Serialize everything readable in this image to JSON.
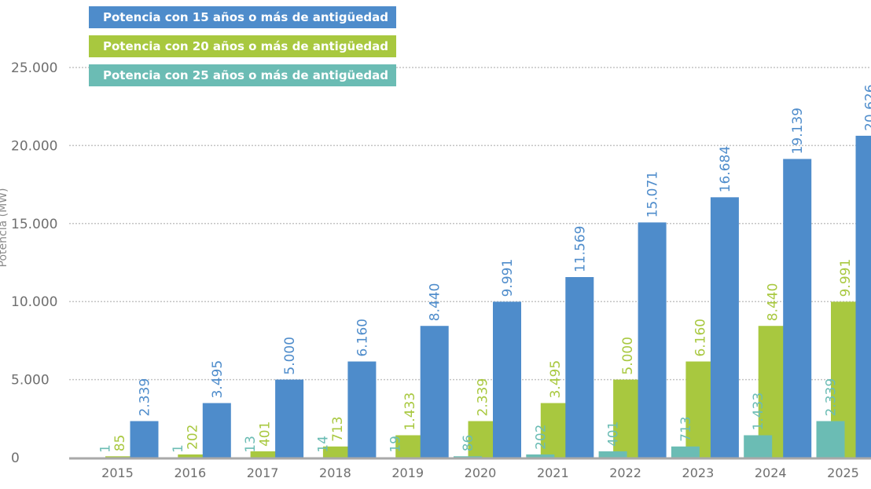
{
  "chart_data": {
    "type": "bar",
    "title": "",
    "xlabel": "",
    "ylabel": "Potencia (MW)",
    "ylim": [
      0,
      25000
    ],
    "yticks": [
      0,
      5000,
      10000,
      15000,
      20000,
      25000
    ],
    "ytick_labels": [
      "0",
      "5.000",
      "10.000",
      "15.000",
      "20.000",
      "25.000"
    ],
    "grid": true,
    "legend_position": "top-left",
    "categories": [
      "2015",
      "2016",
      "2017",
      "2018",
      "2019",
      "2020",
      "2021",
      "2022",
      "2023",
      "2024",
      "2025"
    ],
    "series": [
      {
        "name": "Potencia con 25 años o más de antigüedad",
        "color": "#6bbcb4",
        "label_color": "#6bbcb4",
        "values": [
          1,
          1,
          13,
          14,
          19,
          86,
          202,
          401,
          713,
          1433,
          2339
        ],
        "labels": [
          "1",
          "1",
          "13",
          "14",
          "19",
          "86",
          "202",
          "401",
          "713",
          "1.433",
          "2.339"
        ]
      },
      {
        "name": "Potencia con 20 años o más de antigüedad",
        "color": "#a8c83f",
        "label_color": "#a8c83f",
        "values": [
          85,
          202,
          401,
          713,
          1433,
          2339,
          3495,
          5000,
          6160,
          8440,
          9991
        ],
        "labels": [
          "85",
          "202",
          "401",
          "713",
          "1.433",
          "2.339",
          "3.495",
          "5.000",
          "6.160",
          "8.440",
          "9.991"
        ]
      },
      {
        "name": "Potencia con 15 años o más de antigüedad",
        "color": "#4e8ccb",
        "label_color": "#4e8ccb",
        "values": [
          2339,
          3495,
          5000,
          6160,
          8440,
          9991,
          11569,
          15071,
          16684,
          19139,
          20626
        ],
        "labels": [
          "2.339",
          "3.495",
          "5.000",
          "6.160",
          "8.440",
          "9.991",
          "11.569",
          "15.071",
          "16.684",
          "19.139",
          "20.626"
        ]
      }
    ]
  },
  "legend": [
    {
      "label": "Potencia con 15 años o más de antigüedad",
      "color": "#4e8ccb"
    },
    {
      "label": "Potencia con 20 años o más de antigüedad",
      "color": "#a8c83f"
    },
    {
      "label": "Potencia con 25 años o más de antigüedad",
      "color": "#6bbcb4"
    }
  ]
}
